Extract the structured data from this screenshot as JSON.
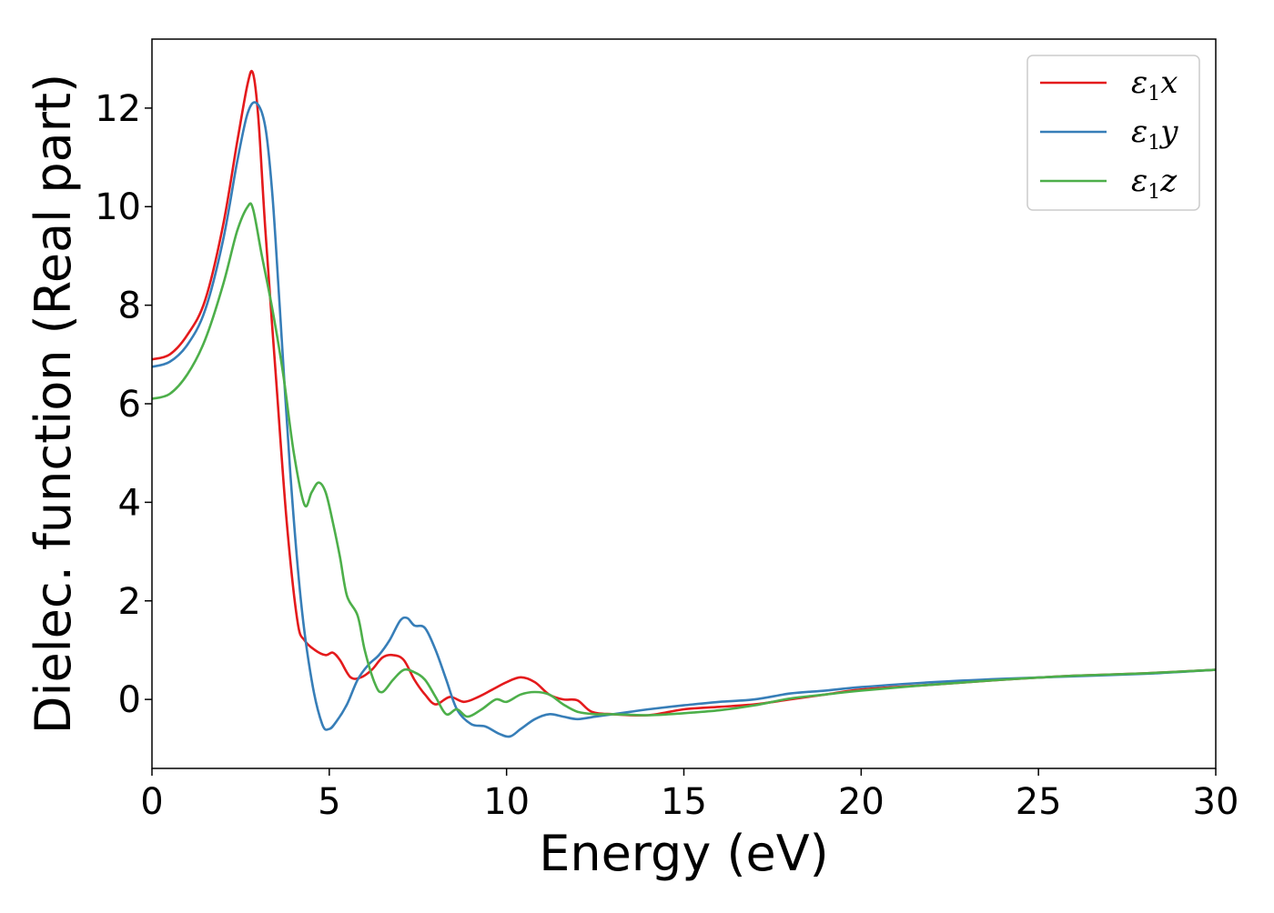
{
  "chart_data": {
    "type": "line",
    "xlabel": "Energy (eV)",
    "ylabel": "Dielec. function (Real part)",
    "xlim": [
      0,
      30
    ],
    "ylim": [
      -1.4,
      13.4
    ],
    "xticks": [
      0,
      5,
      10,
      15,
      20,
      25,
      30
    ],
    "yticks": [
      0,
      2,
      4,
      6,
      8,
      10,
      12
    ],
    "grid": false,
    "legend_position": "top-right",
    "series": [
      {
        "name": "ε1x",
        "legend_base": "ε",
        "legend_sub": "1",
        "legend_tail": "x",
        "color": "#e41a1c",
        "x": [
          0,
          0.5,
          1.0,
          1.5,
          2.0,
          2.4,
          2.7,
          2.85,
          3.0,
          3.2,
          3.5,
          3.8,
          4.1,
          4.3,
          4.6,
          4.9,
          5.1,
          5.3,
          5.6,
          5.9,
          6.2,
          6.5,
          6.8,
          7.1,
          7.4,
          7.7,
          8.0,
          8.4,
          8.8,
          9.2,
          9.6,
          10.0,
          10.4,
          10.8,
          11.2,
          11.6,
          12.0,
          12.4,
          13.0,
          14.0,
          15.0,
          16.0,
          17.0,
          18.0,
          19.0,
          20.0,
          22.0,
          24.0,
          26.0,
          28.0,
          30.0
        ],
        "y": [
          6.9,
          7.0,
          7.4,
          8.1,
          9.6,
          11.3,
          12.5,
          12.7,
          11.8,
          9.5,
          6.5,
          3.6,
          1.6,
          1.2,
          1.0,
          0.9,
          0.95,
          0.8,
          0.45,
          0.45,
          0.6,
          0.85,
          0.9,
          0.8,
          0.4,
          0.1,
          -0.1,
          0.05,
          -0.05,
          0.05,
          0.2,
          0.35,
          0.45,
          0.35,
          0.1,
          0.0,
          -0.02,
          -0.25,
          -0.3,
          -0.32,
          -0.2,
          -0.15,
          -0.1,
          0.0,
          0.1,
          0.2,
          0.3,
          0.4,
          0.48,
          0.53,
          0.6
        ]
      },
      {
        "name": "ε1y",
        "legend_base": "ε",
        "legend_sub": "1",
        "legend_tail": "y",
        "color": "#377eb8",
        "x": [
          0,
          0.5,
          1.0,
          1.5,
          2.0,
          2.4,
          2.7,
          2.95,
          3.2,
          3.4,
          3.6,
          3.9,
          4.2,
          4.5,
          4.8,
          5.0,
          5.2,
          5.5,
          5.8,
          6.1,
          6.4,
          6.7,
          7.0,
          7.2,
          7.4,
          7.7,
          8.0,
          8.3,
          8.6,
          9.0,
          9.4,
          9.8,
          10.1,
          10.4,
          10.8,
          11.2,
          11.6,
          12.0,
          12.5,
          13.0,
          13.5,
          14.0,
          15.0,
          16.0,
          17.0,
          18.0,
          19.0,
          20.0,
          22.0,
          24.0,
          26.0,
          28.0,
          30.0
        ],
        "y": [
          6.75,
          6.85,
          7.2,
          7.9,
          9.3,
          10.9,
          11.9,
          12.1,
          11.6,
          10.2,
          8.0,
          4.6,
          2.0,
          0.4,
          -0.5,
          -0.6,
          -0.45,
          -0.1,
          0.4,
          0.7,
          0.9,
          1.2,
          1.6,
          1.65,
          1.5,
          1.45,
          1.0,
          0.4,
          -0.2,
          -0.5,
          -0.55,
          -0.7,
          -0.75,
          -0.6,
          -0.4,
          -0.3,
          -0.35,
          -0.4,
          -0.35,
          -0.3,
          -0.25,
          -0.2,
          -0.12,
          -0.05,
          0.0,
          0.12,
          0.18,
          0.25,
          0.35,
          0.42,
          0.47,
          0.52,
          0.6
        ]
      },
      {
        "name": "ε1z",
        "legend_base": "ε",
        "legend_sub": "1",
        "legend_tail": "z",
        "color": "#4daf4a",
        "x": [
          0,
          0.5,
          1.0,
          1.5,
          2.0,
          2.4,
          2.7,
          2.85,
          3.1,
          3.4,
          3.7,
          4.0,
          4.3,
          4.5,
          4.7,
          4.9,
          5.1,
          5.3,
          5.5,
          5.8,
          6.0,
          6.3,
          6.5,
          6.8,
          7.1,
          7.4,
          7.7,
          8.0,
          8.3,
          8.6,
          8.9,
          9.3,
          9.7,
          10.0,
          10.4,
          10.8,
          11.2,
          11.6,
          12.0,
          12.5,
          13.0,
          14.0,
          15.0,
          16.0,
          17.0,
          18.0,
          19.0,
          20.0,
          22.0,
          24.0,
          26.0,
          28.0,
          30.0
        ],
        "y": [
          6.1,
          6.2,
          6.6,
          7.3,
          8.4,
          9.5,
          10.0,
          9.95,
          9.0,
          7.9,
          6.6,
          5.0,
          3.95,
          4.2,
          4.4,
          4.2,
          3.6,
          2.9,
          2.1,
          1.7,
          1.0,
          0.3,
          0.15,
          0.4,
          0.6,
          0.55,
          0.4,
          0.05,
          -0.3,
          -0.2,
          -0.35,
          -0.2,
          0.0,
          -0.05,
          0.1,
          0.15,
          0.1,
          -0.1,
          -0.25,
          -0.3,
          -0.3,
          -0.32,
          -0.28,
          -0.22,
          -0.12,
          0.02,
          0.1,
          0.18,
          0.3,
          0.4,
          0.48,
          0.53,
          0.6
        ]
      }
    ]
  }
}
